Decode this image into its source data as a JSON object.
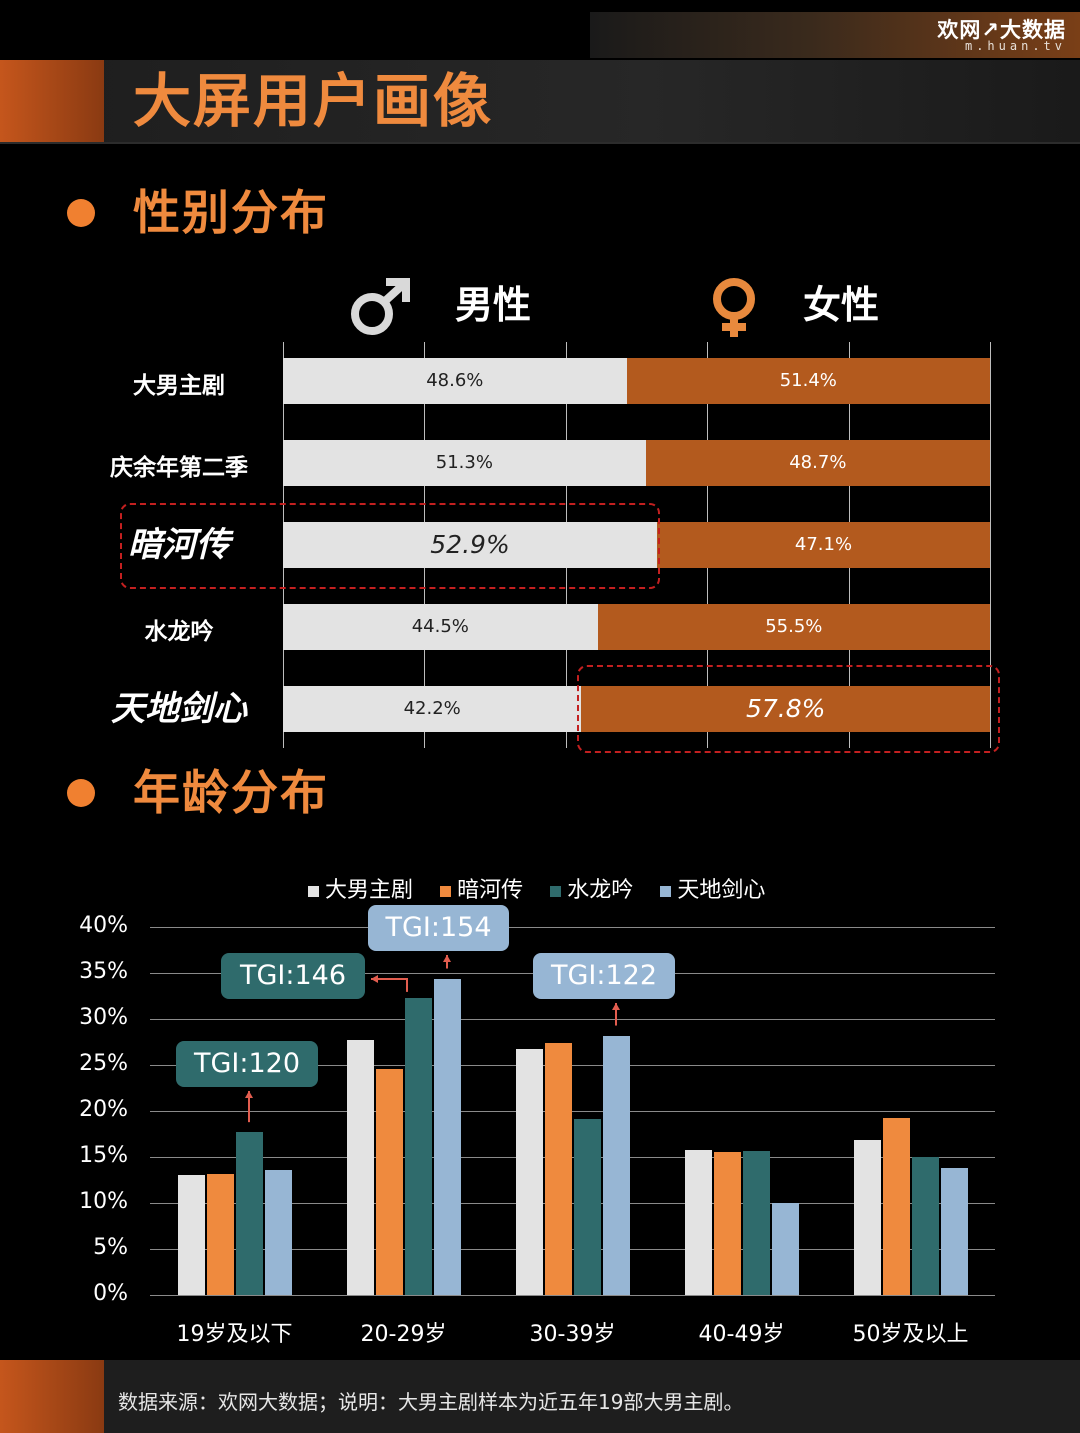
{
  "brand": {
    "logo": "欢网↗大数据",
    "url": "m.huan.tv"
  },
  "title": "大屏用户画像",
  "colors": {
    "accent": "#ef8a3e",
    "male_bar": "#e3e3e3",
    "female_bar": "#b35a1e",
    "s1": "#e3e3e3",
    "s2": "#ef8a3e",
    "s3": "#2f6b6c",
    "s4": "#97b6d4"
  },
  "gender": {
    "section_title": "性别分布",
    "male_label": "男性",
    "female_label": "女性",
    "male_icon": "male-symbol-icon",
    "female_icon": "female-symbol-icon",
    "rows": [
      {
        "label": "大男主剧",
        "male": "48.6%",
        "female": "51.4%"
      },
      {
        "label": "庆余年第二季",
        "male": "51.3%",
        "female": "48.7%"
      },
      {
        "label": "暗河传",
        "male": "52.9%",
        "female": "47.1%"
      },
      {
        "label": "水龙吟",
        "male": "44.5%",
        "female": "55.5%"
      },
      {
        "label": "天地剑心",
        "male": "42.2%",
        "female": "57.8%"
      }
    ]
  },
  "age": {
    "section_title": "年龄分布",
    "tgi": [
      "TGI:120",
      "TGI:146",
      "TGI:154",
      "TGI:122"
    ]
  },
  "chart_data": [
    {
      "type": "bar",
      "title": "性别分布",
      "categories": [
        "大男主剧",
        "庆余年第二季",
        "暗河传",
        "水龙吟",
        "天地剑心"
      ],
      "series": [
        {
          "name": "男性",
          "values": [
            48.6,
            51.3,
            52.9,
            44.5,
            42.2
          ]
        },
        {
          "name": "女性",
          "values": [
            51.4,
            48.7,
            47.1,
            55.5,
            57.8
          ]
        }
      ],
      "stacked": true,
      "orientation": "horizontal",
      "xlim": [
        0,
        100
      ]
    },
    {
      "type": "bar",
      "title": "年龄分布",
      "categories": [
        "19岁及以下",
        "20-29岁",
        "30-39岁",
        "40-49岁",
        "50岁及以上"
      ],
      "series": [
        {
          "name": "大男主剧",
          "values": [
            13,
            27.7,
            26.7,
            15.8,
            16.8
          ]
        },
        {
          "name": "暗河传",
          "values": [
            13.2,
            24.6,
            27.4,
            15.5,
            19.2
          ]
        },
        {
          "name": "水龙吟",
          "values": [
            17.7,
            32.3,
            19.1,
            15.7,
            15
          ]
        },
        {
          "name": "天地剑心",
          "values": [
            13.6,
            34.4,
            28.2,
            10,
            13.8
          ]
        }
      ],
      "ylim": [
        0,
        40
      ],
      "yticks": [
        "0%",
        "5%",
        "10%",
        "15%",
        "20%",
        "25%",
        "30%",
        "35%",
        "40%"
      ],
      "grid": true,
      "legend": "top",
      "annotations": [
        {
          "text": "TGI:120",
          "category": "19岁及以下",
          "series": "水龙吟"
        },
        {
          "text": "TGI:146",
          "category": "20-29岁",
          "series": "水龙吟"
        },
        {
          "text": "TGI:154",
          "category": "20-29岁",
          "series": "天地剑心"
        },
        {
          "text": "TGI:122",
          "category": "30-39岁",
          "series": "天地剑心"
        }
      ]
    }
  ],
  "footer": {
    "note": "数据来源：欢网大数据；说明：大男主剧样本为近五年19部大男主剧。"
  }
}
